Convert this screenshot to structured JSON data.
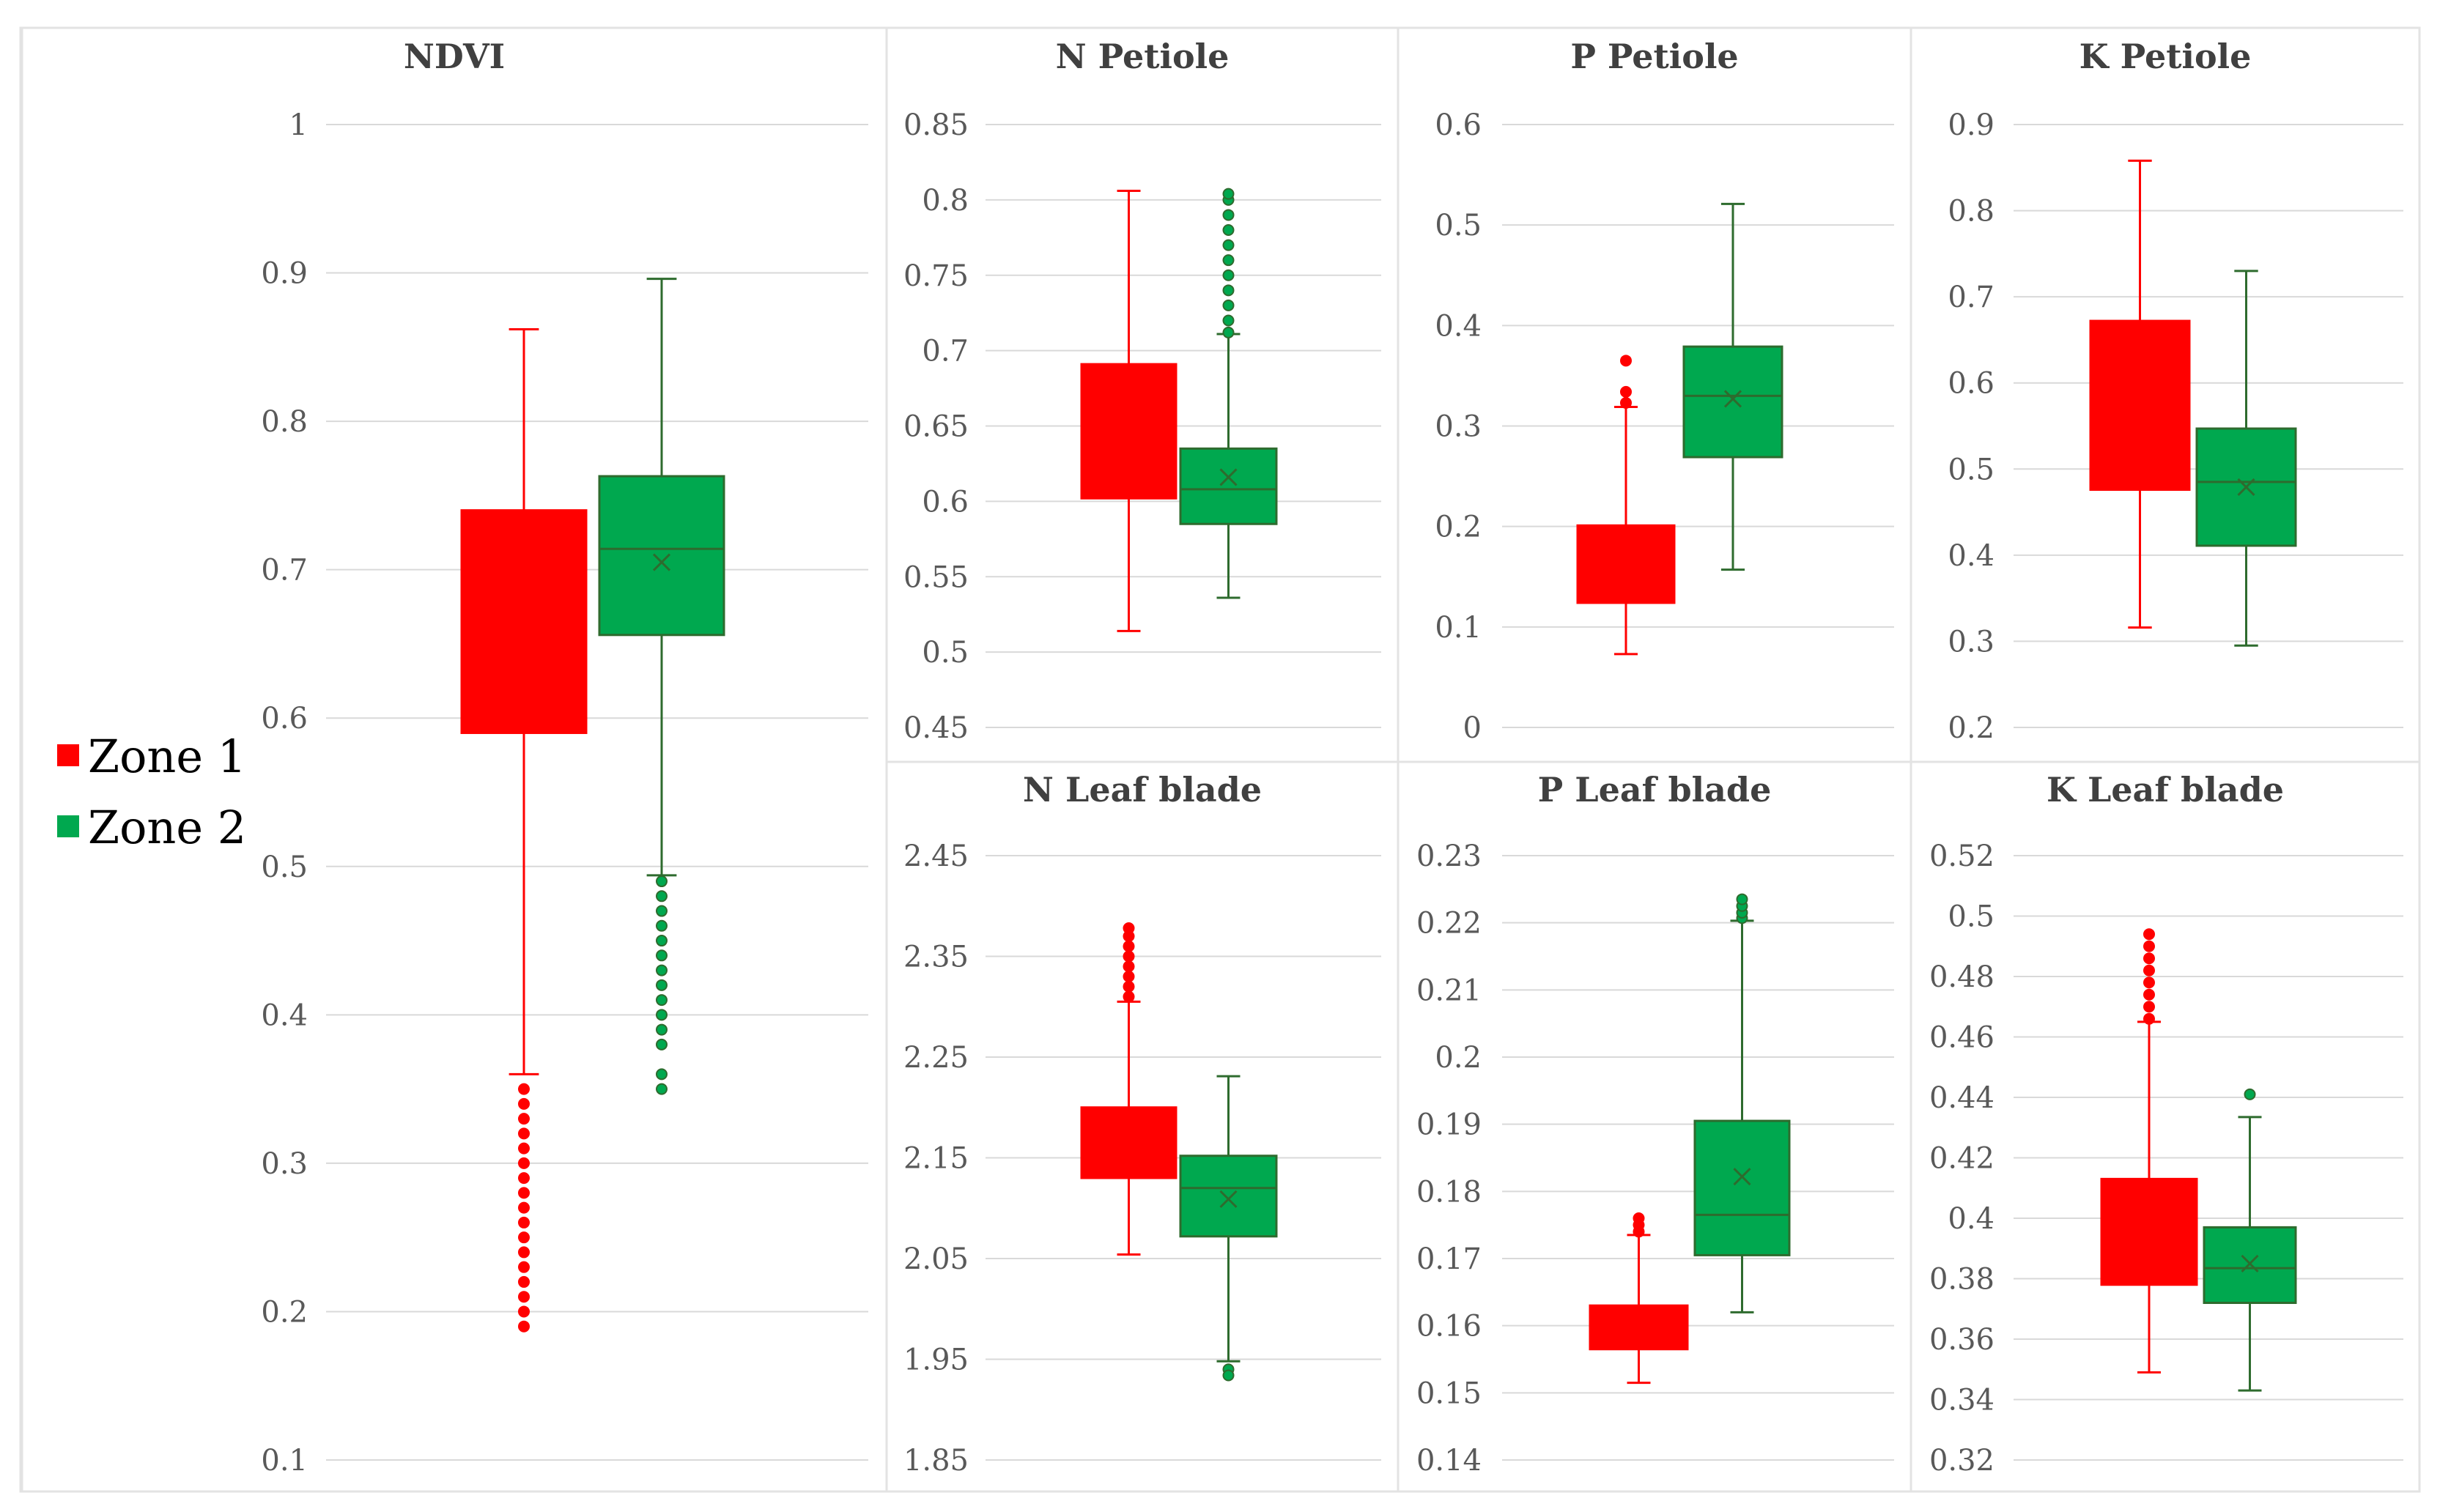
{
  "colors": {
    "zone1": "#ff0000",
    "zone2": "#00a84f",
    "zone2_line": "#2e6b2e",
    "gridline": "#d9d9d9",
    "axis_text": "#595959",
    "title_text": "#404040"
  },
  "legend": [
    {
      "label": "Zone 1",
      "color": "#ff0000"
    },
    {
      "label": "Zone 2",
      "color": "#00a84f"
    }
  ],
  "chart_data": [
    {
      "type": "box",
      "title": "NDVI",
      "ylim": [
        0.1,
        1
      ],
      "ticks": [
        "0.1",
        "0.2",
        "0.3",
        "0.4",
        "0.5",
        "0.6",
        "0.7",
        "0.8",
        "0.9",
        "1"
      ],
      "tick_values": [
        0.1,
        0.2,
        0.3,
        0.4,
        0.5,
        0.6,
        0.7,
        0.8,
        0.9,
        1
      ],
      "series": [
        {
          "name": "Zone 1",
          "q1": 0.59,
          "median": 0.66,
          "q3": 0.74,
          "mean": 0.66,
          "whisker_low": 0.36,
          "whisker_high": 0.862,
          "outliers": [
            0.19,
            0.2,
            0.21,
            0.22,
            0.23,
            0.24,
            0.25,
            0.26,
            0.27,
            0.28,
            0.29,
            0.3,
            0.31,
            0.32,
            0.33,
            0.34,
            0.35
          ]
        },
        {
          "name": "Zone 2",
          "q1": 0.656,
          "median": 0.714,
          "q3": 0.763,
          "mean": 0.705,
          "whisker_low": 0.494,
          "whisker_high": 0.896,
          "outliers": [
            0.35,
            0.36,
            0.38,
            0.39,
            0.4,
            0.41,
            0.42,
            0.43,
            0.44,
            0.45,
            0.46,
            0.47,
            0.48,
            0.49
          ]
        }
      ]
    },
    {
      "type": "box",
      "title": "N Petiole",
      "ylim": [
        0.45,
        0.85
      ],
      "ticks": [
        "0.45",
        "0.5",
        "0.55",
        "0.6",
        "0.65",
        "0.7",
        "0.75",
        "0.8",
        "0.85"
      ],
      "tick_values": [
        0.45,
        0.5,
        0.55,
        0.6,
        0.65,
        0.7,
        0.75,
        0.8,
        0.85
      ],
      "series": [
        {
          "name": "Zone 1",
          "q1": 0.602,
          "median": 0.645,
          "q3": 0.691,
          "mean": 0.645,
          "whisker_low": 0.514,
          "whisker_high": 0.806,
          "outliers": []
        },
        {
          "name": "Zone 2",
          "q1": 0.585,
          "median": 0.608,
          "q3": 0.635,
          "mean": 0.616,
          "whisker_low": 0.536,
          "whisker_high": 0.711,
          "outliers": [
            0.712,
            0.72,
            0.73,
            0.74,
            0.75,
            0.76,
            0.77,
            0.78,
            0.79,
            0.8,
            0.804
          ]
        }
      ]
    },
    {
      "type": "box",
      "title": "P Petiole",
      "ylim": [
        0,
        0.6
      ],
      "ticks": [
        "0",
        "0.1",
        "0.2",
        "0.3",
        "0.4",
        "0.5",
        "0.6"
      ],
      "tick_values": [
        0,
        0.1,
        0.2,
        0.3,
        0.4,
        0.5,
        0.6
      ],
      "series": [
        {
          "name": "Zone 1",
          "q1": 0.124,
          "median": 0.165,
          "q3": 0.201,
          "mean": 0.165,
          "whisker_low": 0.073,
          "whisker_high": 0.319,
          "outliers": [
            0.323,
            0.334,
            0.365
          ]
        },
        {
          "name": "Zone 2",
          "q1": 0.269,
          "median": 0.33,
          "q3": 0.379,
          "mean": 0.327,
          "whisker_low": 0.157,
          "whisker_high": 0.521,
          "outliers": []
        }
      ]
    },
    {
      "type": "box",
      "title": "K Petiole",
      "ylim": [
        0.2,
        0.9
      ],
      "ticks": [
        "0.2",
        "0.3",
        "0.4",
        "0.5",
        "0.6",
        "0.7",
        "0.8",
        "0.9"
      ],
      "tick_values": [
        0.2,
        0.3,
        0.4,
        0.5,
        0.6,
        0.7,
        0.8,
        0.9
      ],
      "series": [
        {
          "name": "Zone 1",
          "q1": 0.476,
          "median": 0.575,
          "q3": 0.672,
          "mean": 0.575,
          "whisker_low": 0.316,
          "whisker_high": 0.858,
          "outliers": []
        },
        {
          "name": "Zone 2",
          "q1": 0.411,
          "median": 0.485,
          "q3": 0.547,
          "mean": 0.479,
          "whisker_low": 0.295,
          "whisker_high": 0.73,
          "outliers": []
        }
      ]
    },
    {
      "type": "box",
      "title": "N Leaf blade",
      "ylim": [
        1.85,
        2.45
      ],
      "ticks": [
        "1.85",
        "1.95",
        "2.05",
        "2.15",
        "2.25",
        "2.35",
        "2.45"
      ],
      "tick_values": [
        1.85,
        1.95,
        2.05,
        2.15,
        2.25,
        2.35,
        2.45
      ],
      "series": [
        {
          "name": "Zone 1",
          "q1": 2.13,
          "median": 2.165,
          "q3": 2.2,
          "mean": 2.165,
          "whisker_low": 2.054,
          "whisker_high": 2.305,
          "outliers": [
            2.31,
            2.32,
            2.33,
            2.34,
            2.35,
            2.36,
            2.37,
            2.378
          ]
        },
        {
          "name": "Zone 2",
          "q1": 2.072,
          "median": 2.12,
          "q3": 2.152,
          "mean": 2.109,
          "whisker_low": 1.948,
          "whisker_high": 2.231,
          "outliers": [
            1.94,
            1.934
          ]
        }
      ]
    },
    {
      "type": "box",
      "title": "P Leaf blade",
      "ylim": [
        0.14,
        0.23
      ],
      "ticks": [
        "0.14",
        "0.15",
        "0.16",
        "0.17",
        "0.18",
        "0.19",
        "0.2",
        "0.21",
        "0.22",
        "0.23"
      ],
      "tick_values": [
        0.14,
        0.15,
        0.16,
        0.17,
        0.18,
        0.19,
        0.2,
        0.21,
        0.22,
        0.23
      ],
      "series": [
        {
          "name": "Zone 1",
          "q1": 0.1565,
          "median": 0.16,
          "q3": 0.163,
          "mean": 0.16,
          "whisker_low": 0.1515,
          "whisker_high": 0.1735,
          "outliers": [
            0.174,
            0.175,
            0.176
          ]
        },
        {
          "name": "Zone 2",
          "q1": 0.1705,
          "median": 0.1765,
          "q3": 0.1905,
          "mean": 0.1822,
          "whisker_low": 0.162,
          "whisker_high": 0.2203,
          "outliers": [
            0.2207,
            0.2215,
            0.2225,
            0.2235
          ]
        }
      ]
    },
    {
      "type": "box",
      "title": "K Leaf blade",
      "ylim": [
        0.32,
        0.52
      ],
      "ticks": [
        "0.32",
        "0.34",
        "0.36",
        "0.38",
        "0.4",
        "0.42",
        "0.44",
        "0.46",
        "0.48",
        "0.5",
        "0.52"
      ],
      "tick_values": [
        0.32,
        0.34,
        0.36,
        0.38,
        0.4,
        0.42,
        0.44,
        0.46,
        0.48,
        0.5,
        0.52
      ],
      "series": [
        {
          "name": "Zone 1",
          "q1": 0.378,
          "median": 0.395,
          "q3": 0.413,
          "mean": 0.395,
          "whisker_low": 0.349,
          "whisker_high": 0.465,
          "outliers": [
            0.466,
            0.47,
            0.474,
            0.478,
            0.482,
            0.486,
            0.49,
            0.494
          ]
        },
        {
          "name": "Zone 2",
          "q1": 0.372,
          "median": 0.3835,
          "q3": 0.397,
          "mean": 0.385,
          "whisker_low": 0.343,
          "whisker_high": 0.4335,
          "outliers": [
            0.441
          ]
        }
      ]
    }
  ]
}
